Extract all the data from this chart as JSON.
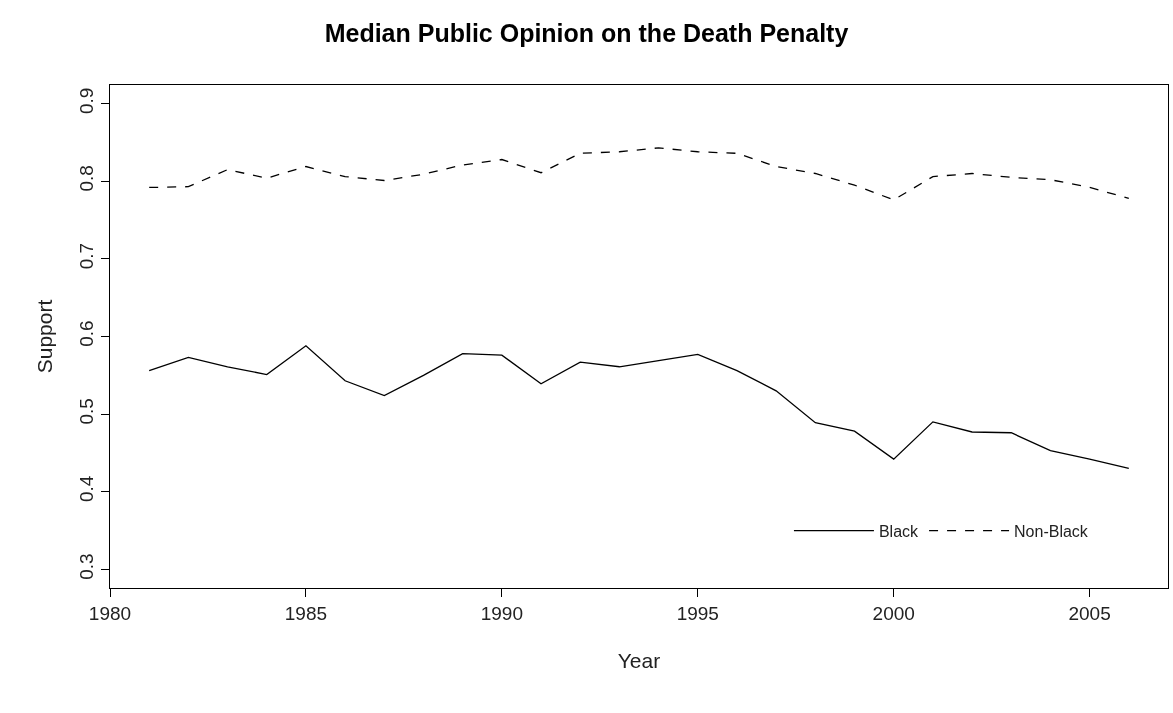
{
  "chart_data": {
    "type": "line",
    "title": "Median Public Opinion on the Death Penalty",
    "xlabel": "Year",
    "ylabel": "Support",
    "x": [
      1981,
      1982,
      1983,
      1984,
      1985,
      1986,
      1987,
      1988,
      1989,
      1990,
      1991,
      1992,
      1993,
      1994,
      1995,
      1996,
      1997,
      1998,
      1999,
      2000,
      2001,
      2002,
      2003,
      2004,
      2005,
      2006
    ],
    "series": [
      {
        "name": "Black",
        "color": "#000000",
        "line_style": "solid",
        "values": [
          0.556,
          0.573,
          0.561,
          0.551,
          0.588,
          0.543,
          0.524,
          0.55,
          0.578,
          0.576,
          0.539,
          0.567,
          0.561,
          0.569,
          0.577,
          0.556,
          0.53,
          0.489,
          0.478,
          0.442,
          0.49,
          0.477,
          0.476,
          0.453,
          0.442,
          0.43
        ]
      },
      {
        "name": "Non-Black",
        "color": "#000000",
        "line_style": "dashed",
        "values": [
          0.792,
          0.793,
          0.815,
          0.804,
          0.819,
          0.806,
          0.801,
          0.809,
          0.821,
          0.828,
          0.811,
          0.836,
          0.838,
          0.843,
          0.838,
          0.836,
          0.819,
          0.81,
          0.795,
          0.776,
          0.806,
          0.81,
          0.805,
          0.802,
          0.792,
          0.778
        ]
      }
    ],
    "xlim": [
      1980,
      2007
    ],
    "xticks": [
      1980,
      1985,
      1990,
      1995,
      2000,
      2005
    ],
    "ylim": [
      0.276,
      0.924
    ],
    "yticks": [
      0.3,
      0.4,
      0.5,
      0.6,
      0.7,
      0.8,
      0.9
    ],
    "legend": "bottom right",
    "marker": "none"
  }
}
